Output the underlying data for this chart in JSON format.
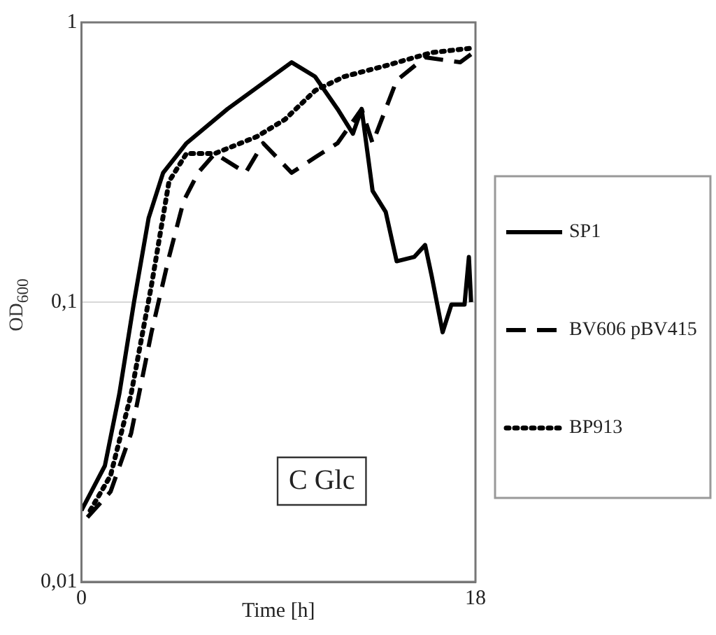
{
  "chart_data": {
    "type": "line",
    "xlabel": "Time [h]",
    "ylabel": "OD$_{600}$",
    "xlim": [
      0,
      18
    ],
    "xticks": [
      0,
      18
    ],
    "ylim": [
      0.01,
      1
    ],
    "yticks": [
      {
        "value": 0.01,
        "label": "0,01"
      },
      {
        "value": 0.1,
        "label": "0,1"
      },
      {
        "value": 1,
        "label": "1"
      }
    ],
    "log": "y",
    "grid": "y",
    "legend": "right",
    "marker": "none",
    "annotations": [
      "C Glc"
    ],
    "series": [
      {
        "name": "SP1",
        "color": "#000000",
        "line_style": "solid",
        "x": [
          0,
          1.07,
          1.73,
          2.4,
          3.07,
          3.73,
          4.8,
          6.67,
          9.6,
          10.67,
          11.7,
          12.4,
          12.8,
          13.3,
          13.9,
          14.4,
          15.2,
          15.7,
          16,
          16.5,
          16.9,
          17.5,
          17.7,
          17.8
        ],
        "values": [
          0.018,
          0.026,
          0.047,
          0.1,
          0.2,
          0.29,
          0.37,
          0.49,
          0.72,
          0.64,
          0.49,
          0.4,
          0.49,
          0.25,
          0.21,
          0.14,
          0.145,
          0.16,
          0.124,
          0.078,
          0.098,
          0.098,
          0.145,
          0.1
        ]
      },
      {
        "name": "BV606 pBV415",
        "color": "#000000",
        "line_style": "dashed",
        "x": [
          0.27,
          1.33,
          2.27,
          3.2,
          4,
          4.67,
          5.33,
          6.1,
          7.5,
          8.3,
          9.6,
          10.7,
          11.7,
          12.8,
          13.3,
          14.4,
          15.7,
          17.3,
          17.9
        ],
        "values": [
          0.017,
          0.021,
          0.034,
          0.078,
          0.145,
          0.23,
          0.29,
          0.34,
          0.29,
          0.37,
          0.29,
          0.33,
          0.37,
          0.49,
          0.37,
          0.62,
          0.75,
          0.72,
          0.78
        ]
      },
      {
        "name": "BP913",
        "color": "#000000",
        "line_style": "dotted",
        "x": [
          0.4,
          1.33,
          2.27,
          3.2,
          4,
          4.8,
          6.1,
          8,
          9.3,
          10.67,
          12,
          13.9,
          16,
          17.9
        ],
        "values": [
          0.018,
          0.024,
          0.047,
          0.115,
          0.27,
          0.34,
          0.34,
          0.39,
          0.45,
          0.57,
          0.64,
          0.7,
          0.78,
          0.81
        ]
      }
    ]
  }
}
